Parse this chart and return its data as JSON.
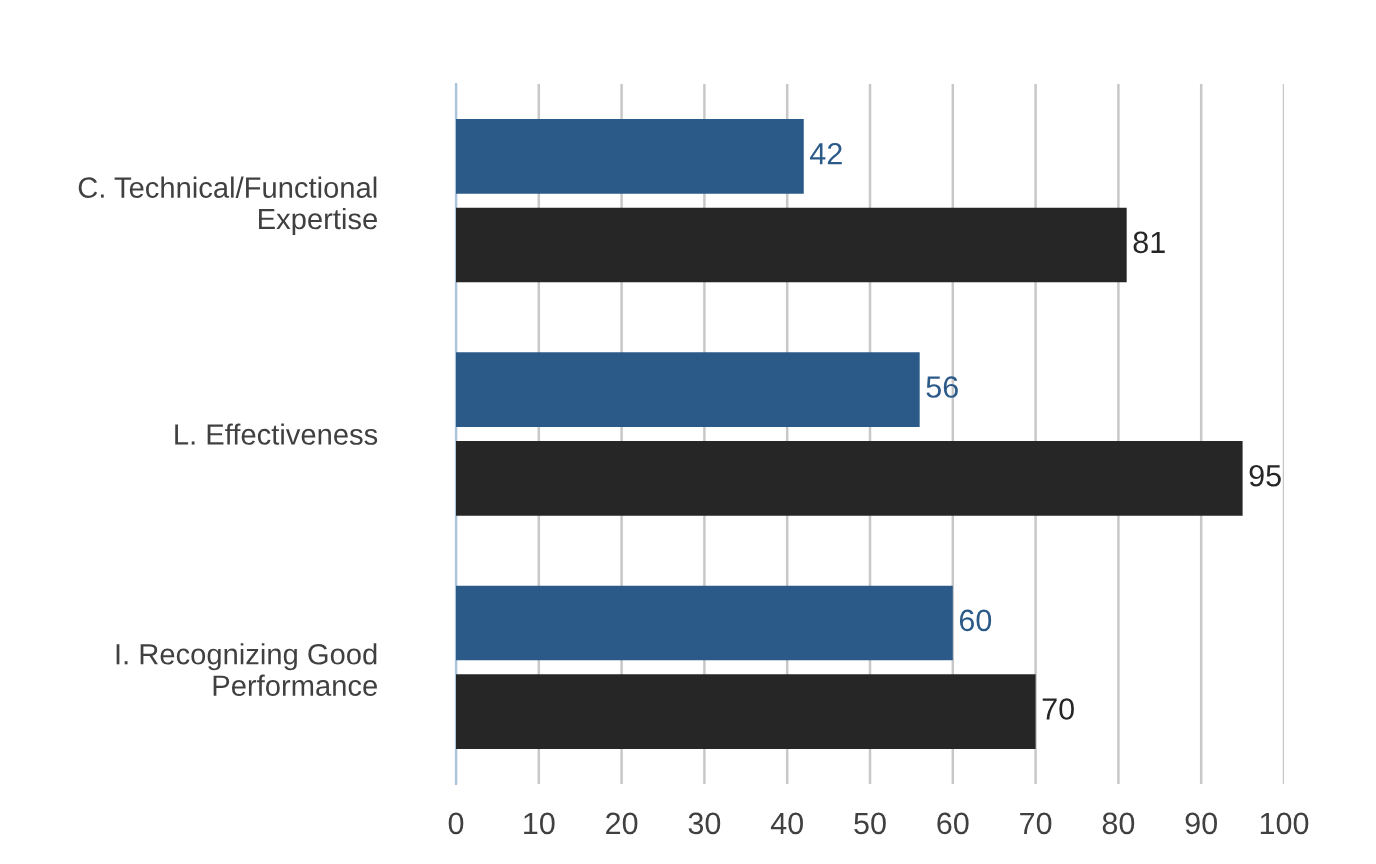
{
  "chart_data": {
    "type": "bar",
    "orientation": "horizontal",
    "categories": [
      "C. Technical/Functional\nExpertise",
      "L. Effectiveness",
      "I. Recognizing Good\nPerformance"
    ],
    "series": [
      {
        "color": "#2b5a89",
        "values": [
          42,
          56,
          60
        ]
      },
      {
        "color": "#262626",
        "values": [
          81,
          95,
          70
        ]
      }
    ],
    "xlim": [
      0,
      100
    ],
    "xticks": [
      0,
      10,
      20,
      30,
      40,
      50,
      60,
      70,
      80,
      90,
      100
    ],
    "grid": "x",
    "data_labels": true,
    "legend": false
  }
}
